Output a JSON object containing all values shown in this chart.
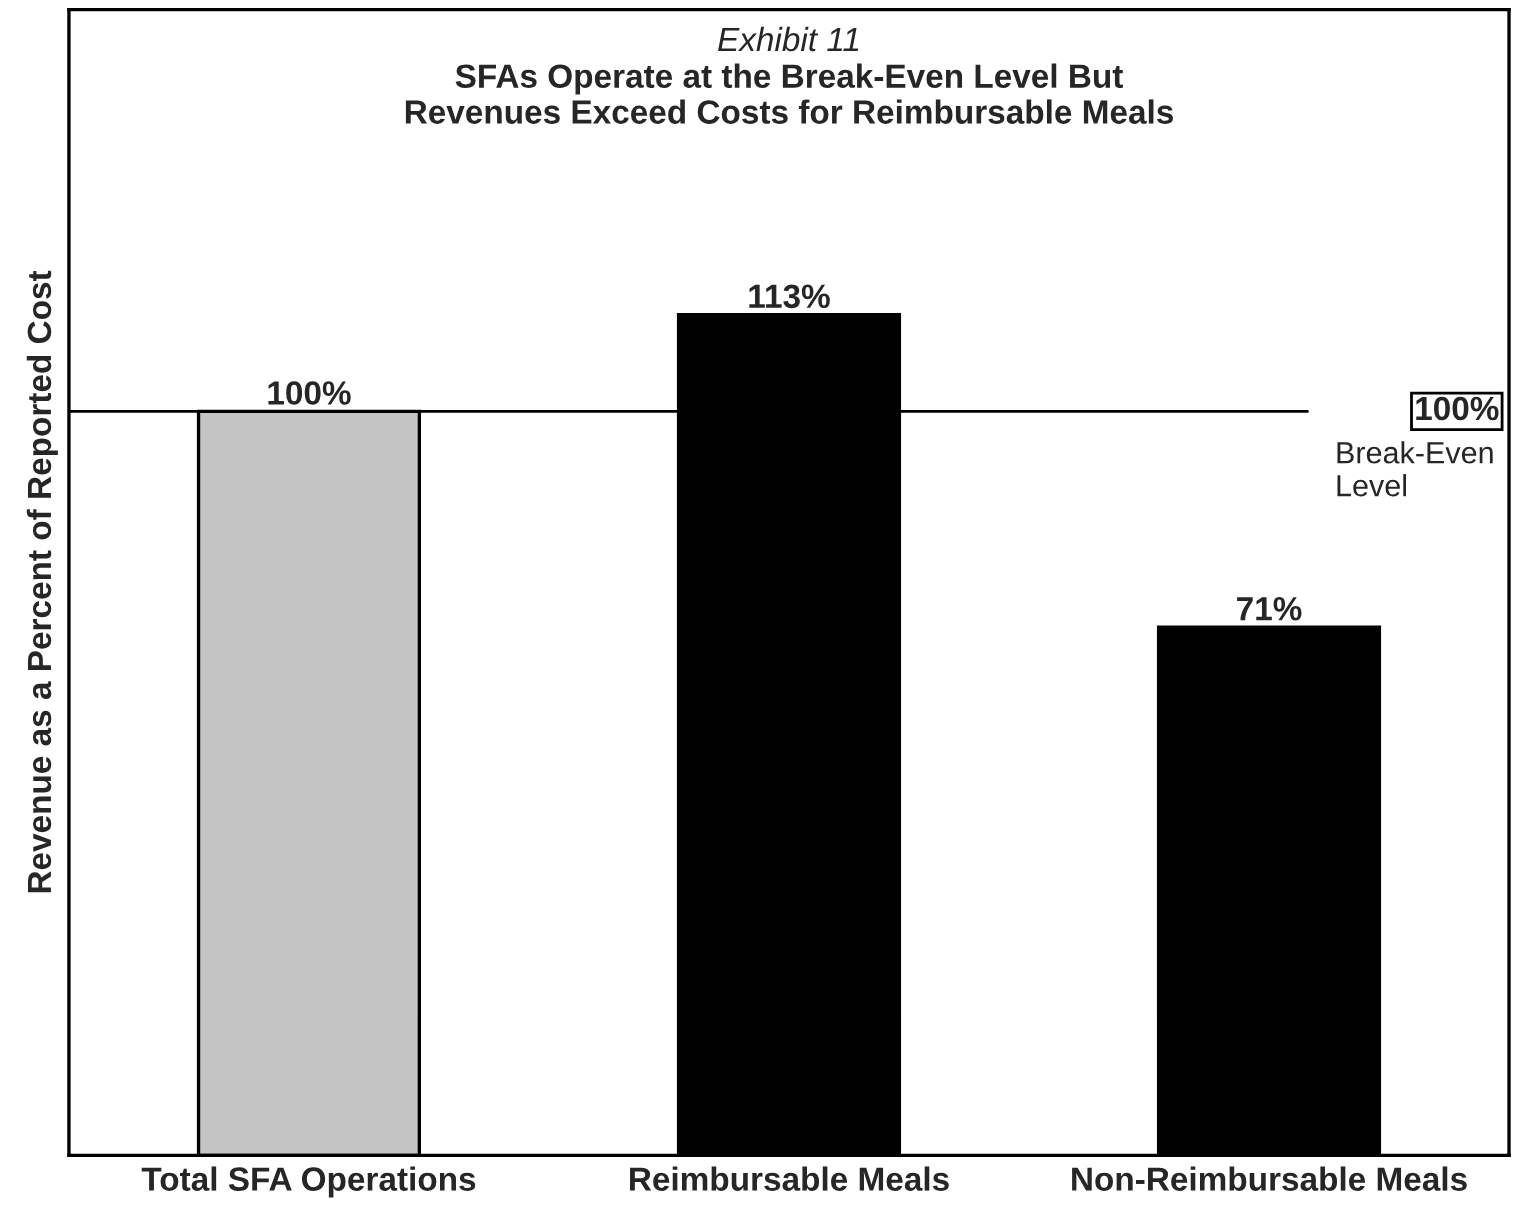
{
  "chart_data": {
    "type": "bar",
    "title": "Exhibit 11",
    "subtitle": "SFAs Operate at the Break-Even Level But\nRevenues Exceed Costs for Reimbursable Meals",
    "ylabel": "Revenue as a Percent of Reported Cost",
    "categories": [
      "Total SFA Operations",
      "Reimbursable Meals",
      "Non-Reimbursable Meals"
    ],
    "values": [
      100,
      113,
      71
    ],
    "colors": [
      "#c4c4c4",
      "#000000",
      "#000000"
    ],
    "value_labels": [
      "100%",
      "113%",
      "71%"
    ],
    "ylim": [
      0,
      154
    ],
    "tick_labels": "x",
    "grid": false,
    "legend": false,
    "ref_lines": [
      {
        "axis": "y",
        "value": 100,
        "label": "100%",
        "color": "#000000"
      }
    ],
    "annotations": [
      "Break-Even\nLevel"
    ]
  }
}
